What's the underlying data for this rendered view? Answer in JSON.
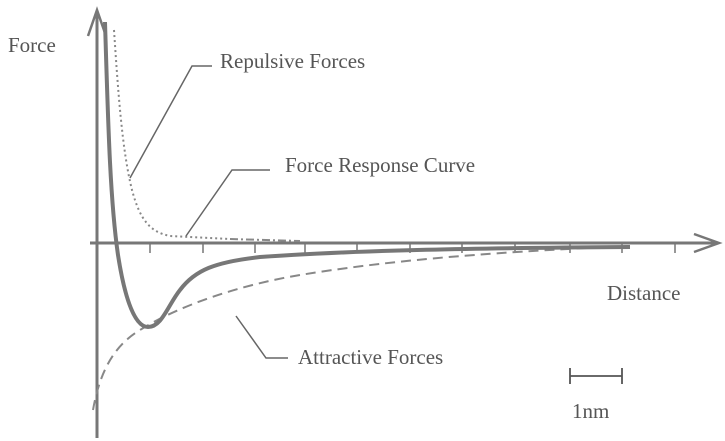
{
  "axes": {
    "y_label": "Force",
    "x_label": "Distance"
  },
  "curves": [
    {
      "label": "Repulsive Forces"
    },
    {
      "label": "Force Response Curve"
    },
    {
      "label": "Attractive Forces"
    }
  ],
  "scale_bar": {
    "label": "1nm"
  }
}
